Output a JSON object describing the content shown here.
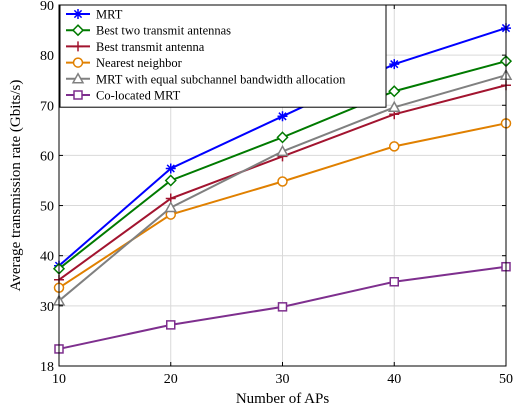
{
  "chart_data": {
    "type": "line",
    "title": "",
    "xlabel": "Number of APs",
    "ylabel": "Average transmission rate (Gbits/s)",
    "x": [
      10,
      20,
      30,
      40,
      50
    ],
    "xlim": [
      10,
      50
    ],
    "ylim": [
      18,
      90
    ],
    "xticks": [
      10,
      20,
      30,
      40,
      50
    ],
    "yticks": [
      18,
      30,
      40,
      50,
      60,
      70,
      80,
      90
    ],
    "grid": true,
    "legend_position": "top-left",
    "series": [
      {
        "name": "MRT",
        "color": "#0000ff",
        "marker": "star",
        "values": [
          38.0,
          57.4,
          67.8,
          78.2,
          85.4
        ]
      },
      {
        "name": "Best two transmit antennas",
        "color": "#007a00",
        "marker": "diamond",
        "values": [
          37.4,
          55.0,
          63.6,
          72.8,
          78.8
        ]
      },
      {
        "name": "Best transmit antenna",
        "color": "#a2142f",
        "marker": "plus",
        "values": [
          35.2,
          51.4,
          59.8,
          68.2,
          74.0
        ]
      },
      {
        "name": "Nearest neighbor",
        "color": "#e08000",
        "marker": "circle",
        "values": [
          33.6,
          48.2,
          54.8,
          61.8,
          66.4
        ]
      },
      {
        "name": "MRT with equal subchannel bandwidth allocation",
        "color": "#808080",
        "marker": "triangle",
        "values": [
          31.0,
          49.6,
          60.8,
          69.6,
          76.0
        ]
      },
      {
        "name": "Co-located MRT",
        "color": "#7e2f8e",
        "marker": "square",
        "values": [
          21.4,
          26.2,
          29.8,
          34.8,
          37.8
        ]
      }
    ]
  }
}
